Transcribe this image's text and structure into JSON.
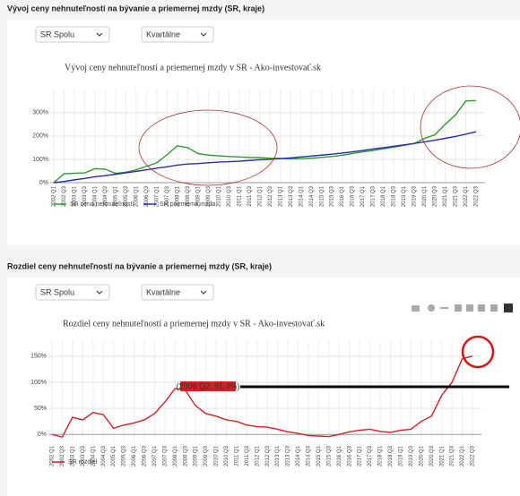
{
  "panels": [
    {
      "heading": "Vývoj ceny nehnuteľností na bývanie a priemernej mzdy (SR, kraje)",
      "selects": [
        "SR Spolu",
        "Kvartálne"
      ]
    },
    {
      "heading": "Rozdiel ceny nehnuteľností na bývanie a priemernej mzdy (SR, kraje)",
      "selects": [
        "SR Spolu",
        "Kvartálne"
      ]
    }
  ],
  "chart_data": [
    {
      "type": "line",
      "title": "Vývoj ceny nehnuteľností a priemernej mzdy v SR - Ako-investovať.sk",
      "categories": [
        "2002 Q1",
        "2002 Q3",
        "2003 Q1",
        "2003 Q3",
        "2004 Q1",
        "2004 Q3",
        "2005 Q1",
        "2005 Q3",
        "2006 Q1",
        "2006 Q3",
        "2007 Q1",
        "2007 Q3",
        "2008 Q1",
        "2008 Q3",
        "2009 Q1",
        "2009 Q3",
        "2010 Q1",
        "2010 Q3",
        "2011 Q1",
        "2011 Q3",
        "2012 Q1",
        "2012 Q3",
        "2013 Q1",
        "2013 Q3",
        "2014 Q1",
        "2014 Q3",
        "2015 Q1",
        "2015 Q3",
        "2016 Q1",
        "2016 Q3",
        "2017 Q1",
        "2017 Q3",
        "2018 Q1",
        "2018 Q3",
        "2019 Q1",
        "2019 Q3",
        "2020 Q1",
        "2020 Q3",
        "2021 Q1",
        "2021 Q3",
        "2022 Q1",
        "2022 Q3"
      ],
      "series": [
        {
          "name": "SR cena nehnuteľností",
          "color": "#2e9a2e",
          "values": [
            0,
            38,
            40,
            42,
            60,
            58,
            40,
            45,
            55,
            70,
            85,
            120,
            158,
            150,
            125,
            118,
            115,
            112,
            110,
            108,
            107,
            105,
            104,
            102,
            103,
            105,
            108,
            112,
            118,
            125,
            132,
            138,
            145,
            152,
            160,
            168,
            190,
            205,
            250,
            290,
            350,
            352
          ]
        },
        {
          "name": "SR priemerná mzda",
          "color": "#2b2bb8",
          "values": [
            0,
            5,
            12,
            18,
            25,
            30,
            36,
            42,
            48,
            55,
            62,
            68,
            75,
            80,
            82,
            85,
            88,
            90,
            92,
            95,
            98,
            100,
            103,
            106,
            110,
            114,
            118,
            122,
            127,
            132,
            138,
            144,
            150,
            156,
            162,
            168,
            175,
            182,
            190,
            198,
            208,
            218
          ]
        }
      ],
      "ylim": [
        0,
        380
      ],
      "yticks": [
        {
          "value": 0,
          "label": "0%"
        },
        {
          "value": 100,
          "label": "100%"
        },
        {
          "value": 200,
          "label": "200%"
        },
        {
          "value": 300,
          "label": "300%"
        }
      ],
      "grid": true
    },
    {
      "type": "line",
      "title": "Rozdiel ceny nehnuteľností a priemernej mzdy v SR - Ako-investovať.sk",
      "categories": [
        "2002 Q1",
        "2002 Q3",
        "2003 Q1",
        "2003 Q3",
        "2004 Q1",
        "2004 Q3",
        "2005 Q1",
        "2005 Q3",
        "2006 Q1",
        "2006 Q3",
        "2007 Q1",
        "2007 Q3",
        "2008 Q1",
        "2008 Q3",
        "2009 Q1",
        "2009 Q3",
        "2010 Q1",
        "2010 Q3",
        "2011 Q1",
        "2011 Q3",
        "2012 Q1",
        "2012 Q3",
        "2013 Q1",
        "2013 Q3",
        "2014 Q1",
        "2014 Q3",
        "2015 Q1",
        "2015 Q3",
        "2016 Q1",
        "2016 Q3",
        "2017 Q1",
        "2017 Q3",
        "2018 Q1",
        "2018 Q3",
        "2019 Q1",
        "2019 Q3",
        "2020 Q1",
        "2020 Q3",
        "2021 Q1",
        "2021 Q3",
        "2022 Q1",
        "2022 Q3"
      ],
      "series": [
        {
          "name": "SR rozdiel",
          "color": "#d42020",
          "values": [
            0,
            -5,
            33,
            28,
            42,
            38,
            12,
            18,
            22,
            28,
            40,
            62,
            88,
            85,
            55,
            40,
            35,
            28,
            25,
            18,
            15,
            14,
            10,
            5,
            2,
            -2,
            -3,
            -4,
            0,
            5,
            8,
            10,
            6,
            4,
            8,
            10,
            25,
            35,
            75,
            100,
            145,
            150
          ]
        }
      ],
      "ylim": [
        -15,
        172
      ],
      "yticks": [
        {
          "value": 0,
          "label": "0%"
        },
        {
          "value": 50,
          "label": "50%"
        },
        {
          "value": 100,
          "label": "100%"
        },
        {
          "value": 150,
          "label": "150%"
        }
      ],
      "annotations": [
        {
          "text": "(2008 Q2, 91.4%)"
        }
      ],
      "grid": true
    }
  ]
}
